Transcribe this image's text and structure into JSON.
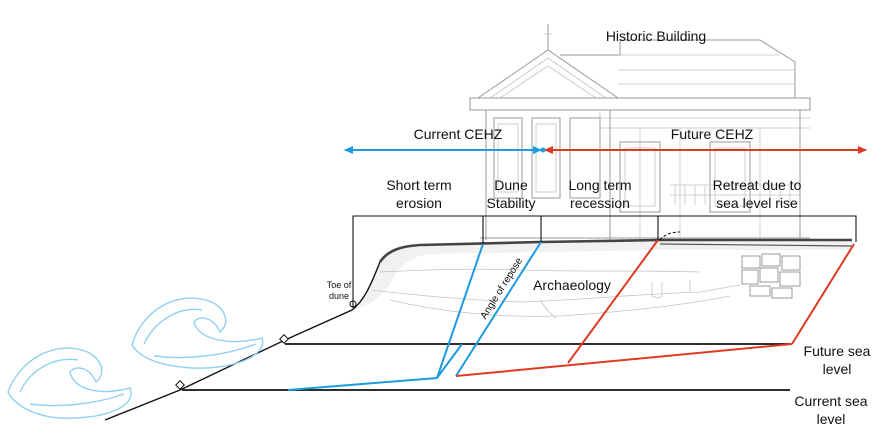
{
  "labels": {
    "historic_building": "Historic Building",
    "current_cehz": "Current CEHZ",
    "future_cehz": "Future CEHZ",
    "short_term_erosion_1": "Short term",
    "short_term_erosion_2": "erosion",
    "dune_stability_1": "Dune",
    "dune_stability_2": "Stability",
    "long_term_recession_1": "Long term",
    "long_term_recession_2": "recession",
    "retreat_1": "Retreat due to",
    "retreat_2": "sea level rise",
    "toe_of_dune_1": "Toe of",
    "toe_of_dune_2": "dune",
    "angle_of_repose": "Angle of repose",
    "archaeology": "Archaeology",
    "future_sea_level_1": "Future sea",
    "future_sea_level_2": "level",
    "current_sea_level_1": "Current sea",
    "current_sea_level_2": "level"
  },
  "colors": {
    "current_zone": "#1e9be0",
    "future_zone": "#dd3a22",
    "line": "#111111",
    "sketch": "#9a9a9a",
    "wave": "#8fd0f0"
  }
}
